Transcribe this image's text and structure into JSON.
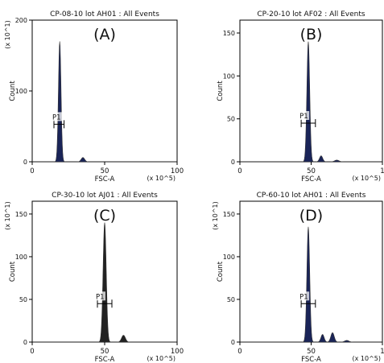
{
  "chart_data": [
    {
      "type": "histogram",
      "title": "CP-08-10 lot AH01 : All Events",
      "panel_label": "(A)",
      "xlabel": "FSC-A",
      "x_unit_label": "(x 10^5)",
      "ylabel": "Count",
      "y_unit_label": "(x 10^1)",
      "xlim": [
        0,
        100
      ],
      "ylim": [
        0,
        200
      ],
      "x_ticks": [
        "0",
        "50",
        "100"
      ],
      "y_ticks": [
        "0",
        "100",
        "200"
      ],
      "gate": {
        "label": "P1",
        "x_range": [
          15,
          22
        ],
        "y": 53
      },
      "peaks": [
        {
          "center": 19,
          "height": 170,
          "sigma": 0.9
        },
        {
          "center": 35,
          "height": 6,
          "sigma": 1.2
        }
      ],
      "fill_color": "#1a2458"
    },
    {
      "type": "histogram",
      "title": "CP-20-10 lot AF02 : All Events",
      "panel_label": "(B)",
      "xlabel": "FSC-A",
      "x_unit_label": "(x 10^5)",
      "ylabel": "Count",
      "y_unit_label": "",
      "xlim": [
        0,
        100
      ],
      "ylim": [
        0,
        165
      ],
      "x_ticks": [
        "0",
        "50",
        "1"
      ],
      "y_ticks": [
        "0",
        "50",
        "100",
        "150"
      ],
      "gate": {
        "label": "P1",
        "x_range": [
          43,
          53
        ],
        "y": 45
      },
      "peaks": [
        {
          "center": 48,
          "height": 140,
          "sigma": 1.0
        },
        {
          "center": 57,
          "height": 7,
          "sigma": 1.1
        },
        {
          "center": 68,
          "height": 2,
          "sigma": 1.5
        }
      ],
      "fill_color": "#1a2458"
    },
    {
      "type": "histogram",
      "title": "CP-30-10 lot AJ01 : All Events",
      "panel_label": "(C)",
      "xlabel": "FSC-A",
      "x_unit_label": "(x 10^5)",
      "ylabel": "Count",
      "y_unit_label": "(x 10^1)",
      "xlim": [
        0,
        100
      ],
      "ylim": [
        0,
        165
      ],
      "x_ticks": [
        "0",
        "50",
        "100"
      ],
      "y_ticks": [
        "0",
        "50",
        "100",
        "150"
      ],
      "gate": {
        "label": "P1",
        "x_range": [
          45,
          55
        ],
        "y": 45
      },
      "peaks": [
        {
          "center": 50,
          "height": 140,
          "sigma": 1.1
        },
        {
          "center": 63,
          "height": 8,
          "sigma": 1.3
        }
      ],
      "fill_color": "#222222"
    },
    {
      "type": "histogram",
      "title": "CP-60-10 lot AH01 : All Events",
      "panel_label": "(D)",
      "xlabel": "FSC-A",
      "x_unit_label": "(x 10^5)",
      "ylabel": "Count",
      "y_unit_label": "(x 10^1)",
      "xlim": [
        0,
        100
      ],
      "ylim": [
        0,
        165
      ],
      "x_ticks": [
        "0",
        "50",
        "1"
      ],
      "y_ticks": [
        "0",
        "50",
        "100",
        "150"
      ],
      "gate": {
        "label": "P1",
        "x_range": [
          43,
          53
        ],
        "y": 45
      },
      "peaks": [
        {
          "center": 48,
          "height": 135,
          "sigma": 1.0
        },
        {
          "center": 58,
          "height": 9,
          "sigma": 1.1
        },
        {
          "center": 65,
          "height": 11,
          "sigma": 1.2
        },
        {
          "center": 75,
          "height": 2,
          "sigma": 1.5
        }
      ],
      "fill_color": "#1a2458"
    }
  ]
}
